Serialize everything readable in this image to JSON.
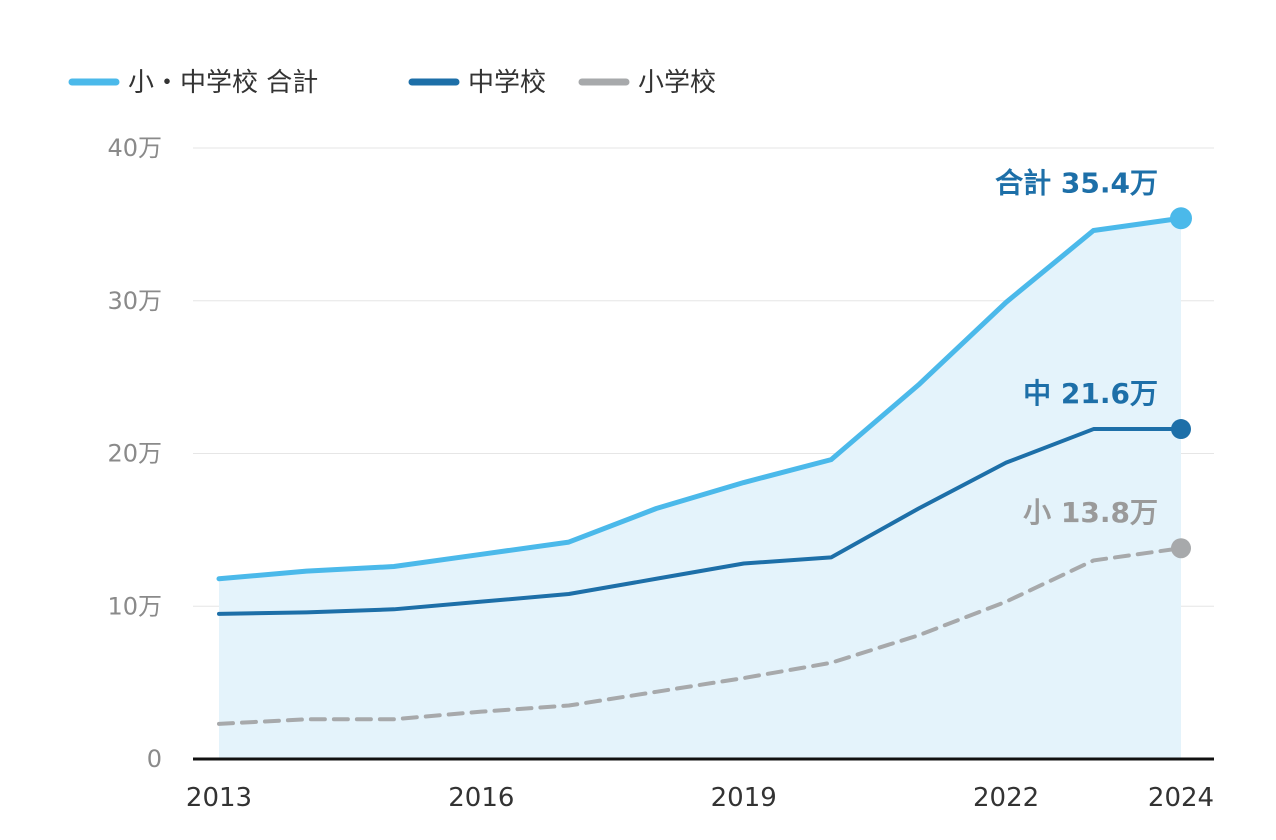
{
  "chart_data": {
    "type": "line",
    "title": "",
    "xlabel": "",
    "ylabel": "",
    "ylim": [
      0,
      40
    ],
    "y_unit": "万",
    "grid": true,
    "legend_position": "top-left",
    "x_ticks": [
      "2013",
      "2016",
      "2019",
      "2022",
      "2024"
    ],
    "y_ticks": [
      "0",
      "10万",
      "20万",
      "30万",
      "40万"
    ],
    "x": [
      2013,
      2014,
      2015,
      2016,
      2017,
      2018,
      2019,
      2020,
      2021,
      2022,
      2023,
      2024
    ],
    "series": [
      {
        "name": "小・中学校 合計",
        "color": "#4bb9ea",
        "style": "solid-filled",
        "values": [
          11.8,
          12.3,
          12.6,
          13.4,
          14.2,
          16.4,
          18.1,
          19.6,
          24.5,
          29.9,
          34.6,
          35.4
        ],
        "end_label": "合計 35.4万",
        "end_label_color": "#1d6fa8"
      },
      {
        "name": "中学校",
        "color": "#1d6fa8",
        "style": "solid",
        "values": [
          9.5,
          9.6,
          9.8,
          10.3,
          10.8,
          11.8,
          12.8,
          13.2,
          16.4,
          19.4,
          21.6,
          21.6
        ],
        "end_label": "中 21.6万",
        "end_label_color": "#1d6fa8"
      },
      {
        "name": "小学校",
        "color": "#a7a9ab",
        "style": "dashed",
        "values": [
          2.3,
          2.6,
          2.6,
          3.1,
          3.5,
          4.4,
          5.3,
          6.3,
          8.1,
          10.3,
          13.0,
          13.8
        ],
        "end_label": "小 13.8万",
        "end_label_color": "#9a9a9a"
      }
    ]
  }
}
